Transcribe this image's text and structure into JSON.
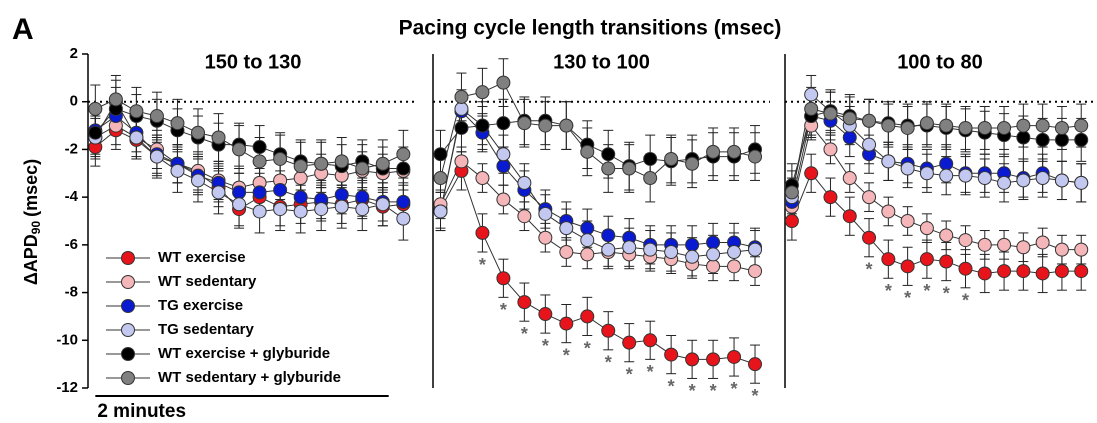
{
  "panel_label": "A",
  "title": "Pacing cycle length transitions (msec)",
  "y_label": {
    "main": "ΔAPD",
    "sub": "90",
    "unit": "(msec)"
  },
  "scale_bar": {
    "value": 2,
    "label": "2 minutes"
  },
  "chart_data": [
    {
      "type": "line",
      "title": "150 to 130",
      "x": [
        0,
        0.14,
        0.28,
        0.42,
        0.56,
        0.7,
        0.84,
        0.98,
        1.12,
        1.26,
        1.4,
        1.54,
        1.68,
        1.82,
        1.96,
        2.1
      ],
      "xlim": [
        -0.05,
        2.2
      ],
      "ylim": [
        -12,
        2
      ],
      "yticks": [
        2,
        0,
        -2,
        -4,
        -6,
        -8,
        -10,
        -12
      ],
      "zero_line": true,
      "legend": "lower left",
      "series": [
        {
          "name": "WT exercise",
          "color": "#e8141b",
          "error": 0.8,
          "values": [
            -1.9,
            -1.2,
            -1.6,
            -2.3,
            -2.6,
            -3.0,
            -3.6,
            -4.5,
            -4.0,
            -4.4,
            -4.3,
            -4.2,
            -4.3,
            -4.1,
            -4.4,
            -4.3
          ]
        },
        {
          "name": "WT sedentary",
          "color": "#f4b6b8",
          "error": 0.8,
          "values": [
            -1.5,
            -1.0,
            -1.5,
            -2.0,
            -2.6,
            -2.9,
            -3.3,
            -3.6,
            -3.4,
            -3.3,
            -3.2,
            -3.0,
            -3.1,
            -2.9,
            -3.0,
            -2.9
          ]
        },
        {
          "name": "TG exercise",
          "color": "#0a1ad0",
          "error": 0.8,
          "values": [
            -1.2,
            -0.6,
            -1.3,
            -2.2,
            -2.6,
            -3.1,
            -3.4,
            -3.8,
            -3.8,
            -3.7,
            -4.0,
            -4.1,
            -3.9,
            -4.0,
            -4.2,
            -4.2
          ]
        },
        {
          "name": "TG sedentary",
          "color": "#c3c8f0",
          "error": 0.9,
          "values": [
            -1.5,
            0.0,
            -1.5,
            -2.3,
            -2.9,
            -3.3,
            -3.8,
            -4.3,
            -4.6,
            -4.5,
            -4.6,
            -4.5,
            -4.4,
            -4.5,
            -4.3,
            -4.9
          ]
        },
        {
          "name": "WT exercise + glyburide",
          "color": "#000000",
          "error": 0.9,
          "values": [
            -1.3,
            -0.3,
            -0.6,
            -0.8,
            -1.2,
            -1.5,
            -1.8,
            -1.8,
            -1.9,
            -2.2,
            -2.5,
            -2.6,
            -2.7,
            -2.5,
            -2.8,
            -2.8
          ]
        },
        {
          "name": "WT sedentary + glyburide",
          "color": "#808080",
          "error": 1.0,
          "values": [
            -0.3,
            0.1,
            -0.4,
            -0.6,
            -0.9,
            -1.3,
            -1.5,
            -2.0,
            -2.5,
            -2.4,
            -2.7,
            -2.6,
            -2.5,
            -2.8,
            -2.6,
            -2.2
          ]
        }
      ]
    },
    {
      "type": "line",
      "title": "130 to 100",
      "x": [
        0,
        0.14,
        0.28,
        0.42,
        0.56,
        0.7,
        0.84,
        0.98,
        1.12,
        1.26,
        1.4,
        1.54,
        1.68,
        1.82,
        1.96,
        2.1
      ],
      "xlim": [
        -0.05,
        2.2
      ],
      "ylim": [
        -12,
        2
      ],
      "zero_line": true,
      "series": [
        {
          "color": "#e8141b",
          "error": 0.8,
          "values": [
            -4.5,
            -2.9,
            -5.5,
            -7.4,
            -8.4,
            -8.9,
            -9.3,
            -9.0,
            -9.6,
            -10.1,
            -10.0,
            -10.6,
            -10.8,
            -10.8,
            -10.7,
            -11.0
          ],
          "significance_label": "*",
          "significant_x": [
            0.28,
            0.42,
            0.56,
            0.7,
            0.84,
            0.98,
            1.12,
            1.26,
            1.4,
            1.54,
            1.68,
            1.82,
            1.96,
            2.1
          ]
        },
        {
          "color": "#f4b6b8",
          "error": 0.6,
          "values": [
            -4.3,
            -2.5,
            -3.2,
            -4.1,
            -4.8,
            -5.7,
            -6.3,
            -6.4,
            -6.3,
            -6.4,
            -6.5,
            -6.6,
            -6.8,
            -6.9,
            -6.9,
            -7.1
          ]
        },
        {
          "color": "#0a1ad0",
          "error": 0.8,
          "values": [
            -4.6,
            -0.4,
            -1.3,
            -2.7,
            -3.7,
            -4.5,
            -5.0,
            -5.3,
            -5.6,
            -5.7,
            -6.0,
            -6.0,
            -6.0,
            -5.9,
            -5.9,
            -6.1
          ]
        },
        {
          "color": "#c3c8f0",
          "error": 0.8,
          "values": [
            -4.6,
            -0.3,
            -1.0,
            -2.2,
            -3.4,
            -4.7,
            -5.3,
            -5.8,
            -6.2,
            -6.1,
            -6.2,
            -6.3,
            -6.5,
            -6.4,
            -6.3,
            -6.2
          ]
        },
        {
          "color": "#000000",
          "error": 1.0,
          "values": [
            -2.2,
            -1.1,
            -1.0,
            -0.9,
            -0.8,
            -0.8,
            -1.0,
            -1.8,
            -2.2,
            -2.7,
            -2.4,
            -2.5,
            -2.4,
            -2.3,
            -2.3,
            -2.0
          ]
        },
        {
          "color": "#808080",
          "error": 1.0,
          "values": [
            -3.2,
            0.2,
            0.4,
            0.8,
            -0.9,
            -1.0,
            -1.0,
            -2.1,
            -2.8,
            -2.8,
            -3.2,
            -2.4,
            -2.6,
            -2.1,
            -2.1,
            -2.3
          ]
        }
      ]
    },
    {
      "type": "line",
      "title": "100 to 80",
      "x": [
        0,
        0.14,
        0.28,
        0.42,
        0.56,
        0.7,
        0.84,
        0.98,
        1.12,
        1.26,
        1.4,
        1.54,
        1.68,
        1.82,
        1.96,
        2.1
      ],
      "xlim": [
        -0.05,
        2.2
      ],
      "ylim": [
        -12,
        2
      ],
      "zero_line": true,
      "series": [
        {
          "color": "#e8141b",
          "error": 0.8,
          "values": [
            -5.0,
            -3.0,
            -4.0,
            -4.8,
            -5.7,
            -6.6,
            -6.9,
            -6.6,
            -6.7,
            -7.0,
            -7.2,
            -7.1,
            -7.1,
            -7.2,
            -7.1,
            -7.1
          ],
          "significance_label": "*",
          "significant_x": [
            0.56,
            0.7,
            0.84,
            0.98,
            1.12,
            1.26
          ]
        },
        {
          "color": "#f4b6b8",
          "error": 0.6,
          "values": [
            -4.4,
            -1.0,
            -2.0,
            -3.2,
            -4.0,
            -4.6,
            -5.0,
            -5.3,
            -5.6,
            -5.8,
            -6.0,
            -6.0,
            -6.1,
            -5.9,
            -6.2,
            -6.2
          ]
        },
        {
          "color": "#0a1ad0",
          "error": 0.8,
          "values": [
            -4.2,
            -0.6,
            -0.8,
            -1.5,
            -2.2,
            -2.5,
            -2.6,
            -2.8,
            -2.6,
            -3.0,
            -3.0,
            -3.0,
            -3.2,
            -3.0,
            -3.3,
            -3.4
          ]
        },
        {
          "color": "#c3c8f0",
          "error": 0.8,
          "values": [
            -4.0,
            0.3,
            -0.4,
            -1.0,
            -1.8,
            -2.5,
            -2.8,
            -3.0,
            -3.1,
            -3.1,
            -3.2,
            -3.4,
            -3.3,
            -3.2,
            -3.3,
            -3.4
          ]
        },
        {
          "color": "#000000",
          "error": 0.9,
          "values": [
            -3.5,
            -0.6,
            -0.4,
            -0.6,
            -0.8,
            -0.9,
            -1.0,
            -1.0,
            -1.1,
            -1.2,
            -1.3,
            -1.4,
            -1.5,
            -1.6,
            -1.6,
            -1.6
          ]
        },
        {
          "color": "#808080",
          "error": 0.9,
          "values": [
            -3.8,
            -0.3,
            -0.5,
            -0.7,
            -0.8,
            -1.0,
            -1.1,
            -0.9,
            -1.0,
            -1.1,
            -1.1,
            -1.1,
            -1.0,
            -1.0,
            -1.1,
            -1.0
          ]
        }
      ]
    }
  ]
}
